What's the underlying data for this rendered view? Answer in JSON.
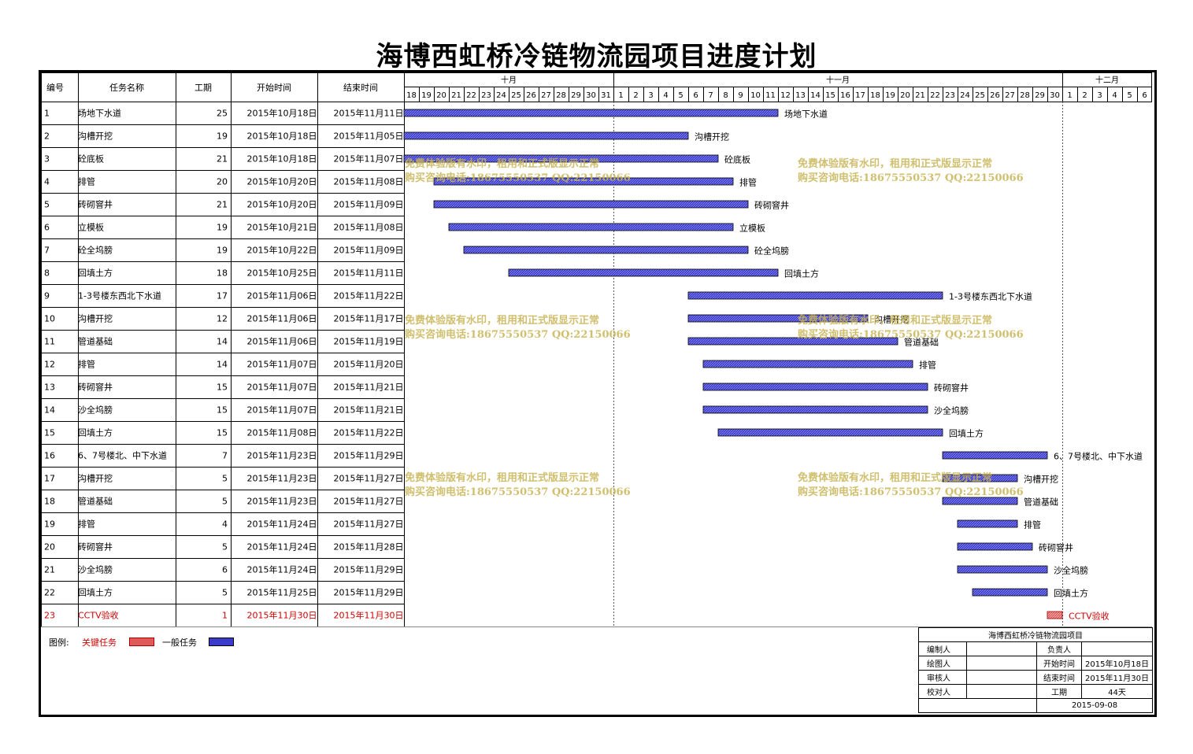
{
  "title": "海博西虹桥冷链物流园项目进度计划",
  "headers": {
    "no": "编号",
    "name": "任务名称",
    "duration": "工期",
    "start": "开始时间",
    "end": "结束时间"
  },
  "months": [
    {
      "label": "十月",
      "days": [
        18,
        19,
        20,
        21,
        22,
        23,
        24,
        25,
        26,
        27,
        28,
        29,
        30,
        31
      ]
    },
    {
      "label": "十一月",
      "days": [
        1,
        2,
        3,
        4,
        5,
        6,
        7,
        8,
        9,
        10,
        11,
        12,
        13,
        14,
        15,
        16,
        17,
        18,
        19,
        20,
        21,
        22,
        23,
        24,
        25,
        26,
        27,
        28,
        29,
        30
      ]
    },
    {
      "label": "十二月",
      "days": [
        1,
        2,
        3,
        4,
        5,
        6
      ]
    }
  ],
  "chart_data": {
    "type": "gantt",
    "timeline_start": "2015-10-18",
    "timeline_end": "2015-12-06",
    "colors": {
      "normal": "#3a3acc",
      "critical": "#e05a5a",
      "critical_text": "#d00000"
    },
    "tasks": [
      {
        "no": "1",
        "name": "场地下水道",
        "duration": "25",
        "start_label": "2015年10月18日",
        "end_label": "2015年11月11日",
        "start": "2015-10-18",
        "end": "2015-11-11",
        "critical": false
      },
      {
        "no": "2",
        "name": "沟槽开挖",
        "duration": "19",
        "start_label": "2015年10月18日",
        "end_label": "2015年11月05日",
        "start": "2015-10-18",
        "end": "2015-11-05",
        "critical": false
      },
      {
        "no": "3",
        "name": "砼底板",
        "duration": "21",
        "start_label": "2015年10月18日",
        "end_label": "2015年11月07日",
        "start": "2015-10-18",
        "end": "2015-11-07",
        "critical": false
      },
      {
        "no": "4",
        "name": "排管",
        "duration": "20",
        "start_label": "2015年10月20日",
        "end_label": "2015年11月08日",
        "start": "2015-10-20",
        "end": "2015-11-08",
        "critical": false
      },
      {
        "no": "5",
        "name": "砖砌窨井",
        "duration": "21",
        "start_label": "2015年10月20日",
        "end_label": "2015年11月09日",
        "start": "2015-10-20",
        "end": "2015-11-09",
        "critical": false
      },
      {
        "no": "6",
        "name": "立模板",
        "duration": "19",
        "start_label": "2015年10月21日",
        "end_label": "2015年11月08日",
        "start": "2015-10-21",
        "end": "2015-11-08",
        "critical": false
      },
      {
        "no": "7",
        "name": "砼全坞膀",
        "duration": "19",
        "start_label": "2015年10月22日",
        "end_label": "2015年11月09日",
        "start": "2015-10-22",
        "end": "2015-11-09",
        "critical": false
      },
      {
        "no": "8",
        "name": "回填土方",
        "duration": "18",
        "start_label": "2015年10月25日",
        "end_label": "2015年11月11日",
        "start": "2015-10-25",
        "end": "2015-11-11",
        "critical": false
      },
      {
        "no": "9",
        "name": "1-3号楼东西北下水道",
        "duration": "17",
        "start_label": "2015年11月06日",
        "end_label": "2015年11月22日",
        "start": "2015-11-06",
        "end": "2015-11-22",
        "critical": false
      },
      {
        "no": "10",
        "name": "沟槽开挖",
        "duration": "12",
        "start_label": "2015年11月06日",
        "end_label": "2015年11月17日",
        "start": "2015-11-06",
        "end": "2015-11-17",
        "critical": false
      },
      {
        "no": "11",
        "name": "管道基础",
        "duration": "14",
        "start_label": "2015年11月06日",
        "end_label": "2015年11月19日",
        "start": "2015-11-06",
        "end": "2015-11-19",
        "critical": false
      },
      {
        "no": "12",
        "name": "排管",
        "duration": "14",
        "start_label": "2015年11月07日",
        "end_label": "2015年11月20日",
        "start": "2015-11-07",
        "end": "2015-11-20",
        "critical": false
      },
      {
        "no": "13",
        "name": "砖砌窨井",
        "duration": "15",
        "start_label": "2015年11月07日",
        "end_label": "2015年11月21日",
        "start": "2015-11-07",
        "end": "2015-11-21",
        "critical": false
      },
      {
        "no": "14",
        "name": "沙全坞膀",
        "duration": "15",
        "start_label": "2015年11月07日",
        "end_label": "2015年11月21日",
        "start": "2015-11-07",
        "end": "2015-11-21",
        "critical": false
      },
      {
        "no": "15",
        "name": "回填土方",
        "duration": "15",
        "start_label": "2015年11月08日",
        "end_label": "2015年11月22日",
        "start": "2015-11-08",
        "end": "2015-11-22",
        "critical": false
      },
      {
        "no": "16",
        "name": "6、7号楼北、中下水道",
        "duration": "7",
        "start_label": "2015年11月23日",
        "end_label": "2015年11月29日",
        "start": "2015-11-23",
        "end": "2015-11-29",
        "critical": false
      },
      {
        "no": "17",
        "name": "沟槽开挖",
        "duration": "5",
        "start_label": "2015年11月23日",
        "end_label": "2015年11月27日",
        "start": "2015-11-23",
        "end": "2015-11-27",
        "critical": false
      },
      {
        "no": "18",
        "name": "管道基础",
        "duration": "5",
        "start_label": "2015年11月23日",
        "end_label": "2015年11月27日",
        "start": "2015-11-23",
        "end": "2015-11-27",
        "critical": false
      },
      {
        "no": "19",
        "name": "排管",
        "duration": "4",
        "start_label": "2015年11月24日",
        "end_label": "2015年11月27日",
        "start": "2015-11-24",
        "end": "2015-11-27",
        "critical": false
      },
      {
        "no": "20",
        "name": "砖砌窨井",
        "duration": "5",
        "start_label": "2015年11月24日",
        "end_label": "2015年11月28日",
        "start": "2015-11-24",
        "end": "2015-11-28",
        "critical": false
      },
      {
        "no": "21",
        "name": "沙全坞膀",
        "duration": "6",
        "start_label": "2015年11月24日",
        "end_label": "2015年11月29日",
        "start": "2015-11-24",
        "end": "2015-11-29",
        "critical": false
      },
      {
        "no": "22",
        "name": "回填土方",
        "duration": "5",
        "start_label": "2015年11月25日",
        "end_label": "2015年11月29日",
        "start": "2015-11-25",
        "end": "2015-11-29",
        "critical": false
      },
      {
        "no": "23",
        "name": "CCTV验收",
        "duration": "1",
        "start_label": "2015年11月30日",
        "end_label": "2015年11月30日",
        "start": "2015-11-30",
        "end": "2015-11-30",
        "critical": true
      }
    ]
  },
  "legend": {
    "label": "图例:",
    "critical": "关键任务",
    "normal": "一般任务"
  },
  "info": {
    "project": "海博西虹桥冷链物流园项目",
    "compiler_label": "编制人",
    "compiler": "",
    "owner_label": "负责人",
    "owner": "",
    "drawer_label": "绘图人",
    "drawer": "",
    "start_label": "开始时间",
    "start": "2015年10月18日",
    "reviewer_label": "审核人",
    "reviewer": "",
    "end_label": "结束时间",
    "end": "2015年11月30日",
    "checker_label": "校对人",
    "checker": "",
    "duration_label": "工期",
    "duration": "44天",
    "date": "2015-09-08"
  },
  "watermark": {
    "line1": "免费体验版有水印，租用和正式版显示正常",
    "line2": "购买咨询电话:18675550537 QQ:22150066"
  }
}
